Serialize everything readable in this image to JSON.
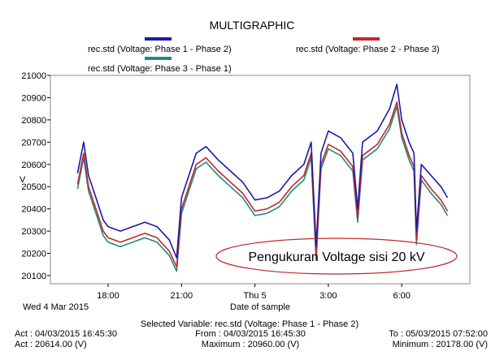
{
  "chart_data": {
    "type": "line",
    "title": "MULTIGRAPHIC",
    "ylabel": "V",
    "xlabel": "Date of sample",
    "date_label": "Wed 4 Mar 2015",
    "ylim": [
      20100,
      21000
    ],
    "yticks": [
      21000,
      20900,
      20800,
      20700,
      20600,
      20500,
      20400,
      20300,
      20200,
      20100
    ],
    "xlim_hours": [
      16.75,
      31.87
    ],
    "xticks": [
      {
        "h": 18,
        "label": "18:00"
      },
      {
        "h": 21,
        "label": "21:00"
      },
      {
        "h": 24,
        "label": "Thu 5"
      },
      {
        "h": 27,
        "label": "3:00"
      },
      {
        "h": 30,
        "label": "6:00"
      }
    ],
    "x": [
      16.75,
      17.0,
      17.2,
      17.5,
      17.8,
      18.0,
      18.5,
      19.0,
      19.5,
      20.0,
      20.5,
      20.8,
      21.0,
      21.3,
      21.6,
      22.0,
      22.5,
      23.0,
      23.5,
      24.0,
      24.5,
      25.0,
      25.5,
      26.0,
      26.3,
      26.5,
      26.7,
      27.0,
      27.5,
      28.0,
      28.2,
      28.4,
      29.0,
      29.5,
      29.8,
      30.0,
      30.3,
      30.5,
      30.6,
      30.8,
      31.2,
      31.6,
      31.87
    ],
    "series": [
      {
        "name": "rec.std (Voltage: Phase 1 - Phase 2)",
        "color": "#1a1aa8",
        "values": [
          20560,
          20700,
          20550,
          20450,
          20350,
          20320,
          20300,
          20320,
          20340,
          20320,
          20260,
          20180,
          20450,
          20550,
          20650,
          20680,
          20620,
          20570,
          20520,
          20440,
          20450,
          20480,
          20550,
          20600,
          20700,
          20230,
          20650,
          20750,
          20720,
          20650,
          20400,
          20700,
          20750,
          20850,
          20960,
          20800,
          20700,
          20650,
          20300,
          20600,
          20550,
          20500,
          20450
        ]
      },
      {
        "name": "rec.std (Voltage: Phase 2 - Phase 3)",
        "color": "#c0282a",
        "values": [
          20510,
          20650,
          20500,
          20400,
          20300,
          20270,
          20250,
          20270,
          20290,
          20270,
          20210,
          20140,
          20400,
          20500,
          20600,
          20630,
          20570,
          20520,
          20470,
          20390,
          20400,
          20430,
          20500,
          20550,
          20650,
          20190,
          20600,
          20690,
          20660,
          20590,
          20360,
          20640,
          20690,
          20780,
          20880,
          20740,
          20640,
          20590,
          20260,
          20550,
          20490,
          20440,
          20390
        ]
      },
      {
        "name": "rec.std (Voltage: Phase 3 - Phase 1)",
        "color": "#1f8a80",
        "values": [
          20490,
          20630,
          20480,
          20380,
          20280,
          20250,
          20230,
          20250,
          20270,
          20250,
          20190,
          20120,
          20380,
          20480,
          20580,
          20610,
          20550,
          20500,
          20450,
          20370,
          20380,
          20410,
          20480,
          20530,
          20630,
          20170,
          20580,
          20670,
          20640,
          20570,
          20340,
          20620,
          20670,
          20760,
          20860,
          20720,
          20620,
          20570,
          20240,
          20530,
          20470,
          20420,
          20370
        ]
      }
    ],
    "annotation": "Pengukuran Voltage sisi 20 kV"
  },
  "footer": {
    "selected": "Selected Variable: rec.std (Voltage: Phase 1 - Phase 2)",
    "act_time": "Act : 04/03/2015 16:45:30",
    "act_value": "Act : 20614.00 (V)",
    "from": "From : 04/03/2015 16:45:30",
    "maximum": "Maximum : 20960.00 (V)",
    "to": "To : 05/03/2015 07:52:00",
    "minimum": "Minimum : 20178.00 (V)"
  }
}
